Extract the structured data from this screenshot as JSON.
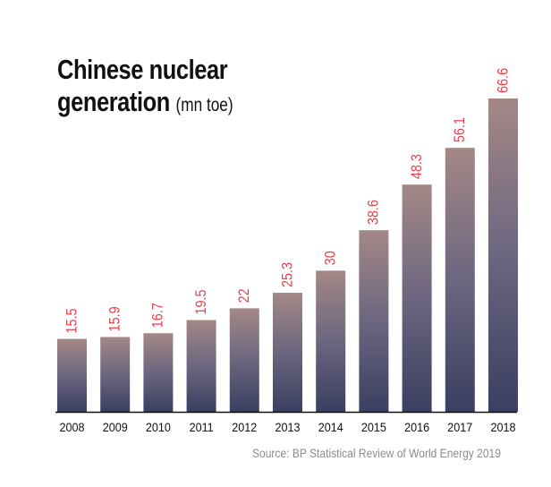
{
  "chart_data": {
    "type": "bar",
    "title": "Chinese nuclear generation",
    "title_line1": "Chinese nuclear",
    "title_line2": "generation",
    "unit": "(mn toe)",
    "xlabel": "",
    "ylabel": "",
    "categories": [
      "2008",
      "2009",
      "2010",
      "2011",
      "2012",
      "2013",
      "2014",
      "2015",
      "2016",
      "2017",
      "2018"
    ],
    "values": [
      15.5,
      15.9,
      16.7,
      19.5,
      22,
      25.3,
      30,
      38.6,
      48.3,
      56.1,
      66.6
    ],
    "value_labels": [
      "15.5",
      "15.9",
      "16.7",
      "19.5",
      "22",
      "25.3",
      "30",
      "38.6",
      "48.3",
      "56.1",
      "66.6"
    ],
    "ylim": [
      0,
      66.6
    ],
    "grid": false,
    "legend": "none",
    "source": "Source: BP Statistical Review of World Energy 2019"
  },
  "colors": {
    "bar_top": "#a48886",
    "bar_mid": "#6c6680",
    "bar_bottom": "#3a3f60",
    "value_label": "#e8404a",
    "axis": "#111111",
    "source_text": "#8c8c8c"
  }
}
